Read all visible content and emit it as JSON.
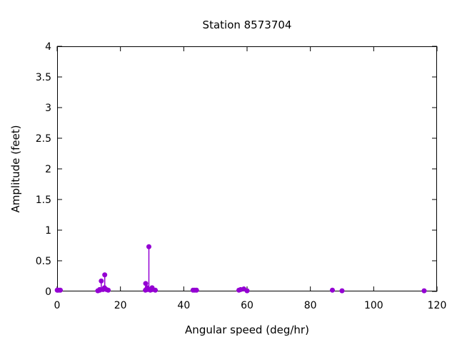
{
  "chart_data": {
    "type": "scatter",
    "style": "impulses-with-points",
    "title": "Station 8573704",
    "xlabel": "Angular speed (deg/hr)",
    "ylabel": "Amplitude (feet)",
    "xlim": [
      0,
      120
    ],
    "ylim": [
      0,
      4
    ],
    "xticks": [
      0,
      20,
      40,
      60,
      80,
      100,
      120
    ],
    "yticks": [
      0,
      0.5,
      1,
      1.5,
      2,
      2.5,
      3,
      3.5,
      4
    ],
    "grid": false,
    "legend_position": "none",
    "tick_style": "inward-mirrored",
    "point_color": "#9400d3",
    "axis_color": "#000000",
    "points": [
      {
        "x": 0.041,
        "y": 0.02
      },
      {
        "x": 0.082,
        "y": 0.02
      },
      {
        "x": 0.544,
        "y": 0.02
      },
      {
        "x": 1.016,
        "y": 0.02
      },
      {
        "x": 12.854,
        "y": 0.01
      },
      {
        "x": 13.399,
        "y": 0.03
      },
      {
        "x": 13.471,
        "y": 0.02
      },
      {
        "x": 13.943,
        "y": 0.17
      },
      {
        "x": 14.497,
        "y": 0.03
      },
      {
        "x": 14.959,
        "y": 0.06
      },
      {
        "x": 15.041,
        "y": 0.27
      },
      {
        "x": 15.585,
        "y": 0.03
      },
      {
        "x": 16.139,
        "y": 0.02
      },
      {
        "x": 27.895,
        "y": 0.02
      },
      {
        "x": 27.968,
        "y": 0.13
      },
      {
        "x": 28.439,
        "y": 0.06
      },
      {
        "x": 28.512,
        "y": 0.03
      },
      {
        "x": 28.984,
        "y": 0.73
      },
      {
        "x": 29.455,
        "y": 0.02
      },
      {
        "x": 29.528,
        "y": 0.03
      },
      {
        "x": 30.0,
        "y": 0.06
      },
      {
        "x": 30.082,
        "y": 0.03
      },
      {
        "x": 31.016,
        "y": 0.02
      },
      {
        "x": 42.927,
        "y": 0.02
      },
      {
        "x": 43.476,
        "y": 0.02
      },
      {
        "x": 44.025,
        "y": 0.02
      },
      {
        "x": 57.424,
        "y": 0.02
      },
      {
        "x": 57.968,
        "y": 0.03
      },
      {
        "x": 58.984,
        "y": 0.04
      },
      {
        "x": 60.0,
        "y": 0.01
      },
      {
        "x": 86.952,
        "y": 0.02
      },
      {
        "x": 90.0,
        "y": 0.01
      },
      {
        "x": 115.936,
        "y": 0.01
      }
    ]
  }
}
